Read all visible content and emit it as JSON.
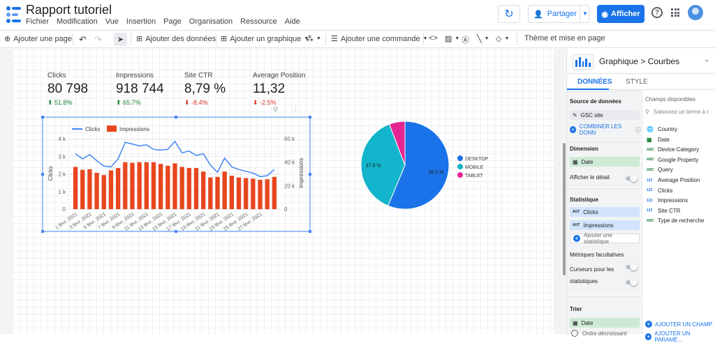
{
  "header": {
    "title": "Rapport tutoriel",
    "menu": [
      "Fichier",
      "Modification",
      "Vue",
      "Insertion",
      "Page",
      "Organisation",
      "Ressource",
      "Aide"
    ],
    "share_label": "Partager",
    "view_label": "Afficher"
  },
  "toolbar": {
    "add_page": "Ajouter une page",
    "add_data": "Ajouter des données",
    "add_chart": "Ajouter un graphique",
    "add_control": "Ajouter une commande",
    "theme": "Thème et mise en page"
  },
  "scorecards": [
    {
      "label": "Clicks",
      "value": "80 798",
      "delta": "51.8%",
      "direction": "up"
    },
    {
      "label": "Impressions",
      "value": "918 744",
      "delta": "65.7%",
      "direction": "up"
    },
    {
      "label": "Site CTR",
      "value": "8,79 %",
      "delta": "-8.4%",
      "direction": "down"
    },
    {
      "label": "Average Position",
      "value": "11,32",
      "delta": "-2.5%",
      "direction": "down"
    }
  ],
  "chart_data": [
    {
      "type": "bar",
      "legend": [
        "Clicks",
        "Impressions"
      ],
      "ylabel": "Clicks",
      "y2label": "Impressions",
      "left_ticks": [
        "0",
        "1 k",
        "2 k",
        "3 k",
        "4 k"
      ],
      "right_ticks": [
        "0",
        "20 k",
        "40 k",
        "60 k"
      ],
      "x_ticks": [
        "1 févr. 2021",
        "3 févr. 2021",
        "5 févr. 2021",
        "7 févr. 2021",
        "9 févr. 2021",
        "11 févr. 2021",
        "13 févr. 2021",
        "15 févr. 2021",
        "17 févr. 2021",
        "19 févr. 2021",
        "21 févr. 2021",
        "23 févr. 2021",
        "25 févr. 2021",
        "27 févr. 2021"
      ],
      "ylim": [
        0,
        4000
      ],
      "y2lim": [
        0,
        60000
      ],
      "series": [
        {
          "name": "Impressions",
          "type": "bar",
          "axis": "right",
          "values": [
            36000,
            33500,
            34000,
            31000,
            29000,
            33000,
            35000,
            40000,
            39500,
            40000,
            40000,
            40000,
            38500,
            37000,
            39000,
            36000,
            35000,
            35000,
            32000,
            27000,
            27500,
            32000,
            28500,
            27000,
            26500,
            26000,
            25000,
            25500,
            27500
          ]
        },
        {
          "name": "Clicks",
          "type": "line",
          "axis": "left",
          "values": [
            3150,
            2850,
            3100,
            2750,
            2450,
            2400,
            2850,
            3800,
            3700,
            3600,
            3650,
            3400,
            3350,
            3400,
            3850,
            3200,
            3300,
            3050,
            3150,
            2500,
            2100,
            2900,
            2400,
            2250,
            2150,
            2050,
            1850,
            1900,
            2250
          ]
        }
      ]
    },
    {
      "type": "pie",
      "slices": [
        {
          "name": "DESKTOP",
          "value": 56.3,
          "label": "56,3 %",
          "color": "#1a73e8"
        },
        {
          "name": "MOBILE",
          "value": 37.9,
          "label": "37,9 %",
          "color": "#12b5cb"
        },
        {
          "name": "TABLET",
          "value": 5.8,
          "label": "",
          "color": "#e52592"
        }
      ]
    }
  ],
  "panel": {
    "chart_type": "Graphique",
    "chart_subtype": "Courbes",
    "tab_data": "DONNÉES",
    "tab_style": "STYLE",
    "source_title": "Source de données",
    "source_name": "GSC site",
    "combine": "COMBINER LES DONN",
    "dimension_title": "Dimension",
    "dimension": "Date",
    "drill": "Afficher le détail",
    "metric_title": "Statistique",
    "metric_1": "Clicks",
    "metric_2": "Impressions",
    "metric_badge": "AUT",
    "add_metric": "Ajouter une statistique",
    "optional_metrics": "Métriques facultatives",
    "sliders_1": "Curseurs pour les",
    "sliders_2": "statistiques",
    "sort_title": "Trier",
    "sort_field": "Date",
    "sort_order": "Ordre décroissant",
    "fields_title": "Champs disponibles",
    "search_placeholder": "Saisissez un terme à r",
    "fields": [
      {
        "name": "Country",
        "type": "geo"
      },
      {
        "name": "Date",
        "type": "date"
      },
      {
        "name": "Device Category",
        "type": "ABC"
      },
      {
        "name": "Google Property",
        "type": "ABC"
      },
      {
        "name": "Query",
        "type": "ABC"
      },
      {
        "name": "Average Position",
        "type": "123"
      },
      {
        "name": "Clicks",
        "type": "123"
      },
      {
        "name": "Impressions",
        "type": "123"
      },
      {
        "name": "Site CTR",
        "type": "123"
      },
      {
        "name": "Type de recherche",
        "type": "ABC"
      }
    ],
    "add_field": "AJOUTER UN CHAMP",
    "add_param": "AJOUTER UN PARAMÈ..."
  },
  "colors": {
    "accent": "#1a73e8",
    "bar": "#e8461e",
    "line": "#4285f4",
    "teal": "#12b5cb",
    "magenta": "#e52592"
  }
}
